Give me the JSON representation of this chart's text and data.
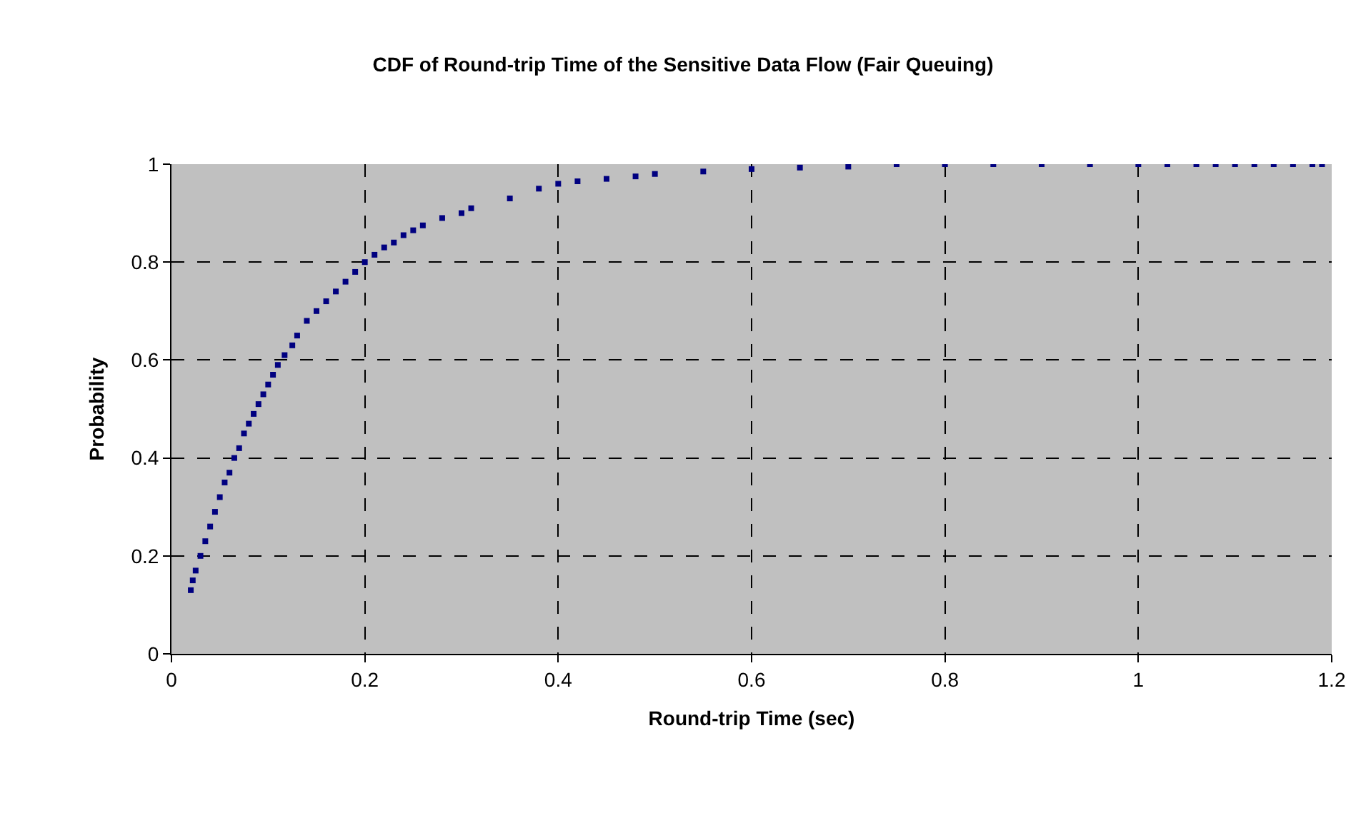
{
  "chart_data": {
    "type": "scatter",
    "title": "CDF of Round-trip Time of the Sensitive Data Flow (Fair Queuing)",
    "xlabel": "Round-trip Time (sec)",
    "ylabel": "Probability",
    "series": [
      {
        "color": "#000080",
        "x": [
          0.02,
          0.022,
          0.025,
          0.03,
          0.035,
          0.04,
          0.045,
          0.05,
          0.055,
          0.06,
          0.065,
          0.07,
          0.075,
          0.08,
          0.085,
          0.09,
          0.095,
          0.1,
          0.105,
          0.11,
          0.117,
          0.125,
          0.13,
          0.14,
          0.15,
          0.16,
          0.17,
          0.18,
          0.19,
          0.2,
          0.21,
          0.22,
          0.23,
          0.24,
          0.25,
          0.26,
          0.28,
          0.3,
          0.31,
          0.35,
          0.38,
          0.4,
          0.42,
          0.45,
          0.48,
          0.5,
          0.55,
          0.6,
          0.65,
          0.7,
          0.75,
          0.8,
          0.85,
          0.9,
          0.95,
          1.0,
          1.03,
          1.06,
          1.08,
          1.1,
          1.12,
          1.14,
          1.16,
          1.18,
          1.19
        ],
        "values": [
          0.13,
          0.15,
          0.17,
          0.2,
          0.23,
          0.26,
          0.29,
          0.32,
          0.35,
          0.37,
          0.4,
          0.42,
          0.45,
          0.47,
          0.49,
          0.51,
          0.53,
          0.55,
          0.57,
          0.59,
          0.61,
          0.63,
          0.65,
          0.68,
          0.7,
          0.72,
          0.74,
          0.76,
          0.78,
          0.8,
          0.815,
          0.83,
          0.84,
          0.855,
          0.865,
          0.875,
          0.89,
          0.9,
          0.91,
          0.93,
          0.95,
          0.96,
          0.965,
          0.97,
          0.975,
          0.98,
          0.985,
          0.99,
          0.993,
          0.995,
          1.0,
          1.0,
          1.0,
          1.0,
          1.0,
          1.0,
          1.0,
          1.0,
          1.0,
          1.0,
          1.0,
          1.0,
          1.0,
          1.0,
          1.0
        ]
      }
    ],
    "marker": "square",
    "xlim": [
      0,
      1.2
    ],
    "ylim": [
      0,
      1
    ],
    "xticks": [
      0,
      0.2,
      0.4,
      0.6,
      0.8,
      1,
      1.2
    ],
    "yticks": [
      0,
      0.2,
      0.4,
      0.6,
      0.8,
      1
    ],
    "grid": true,
    "legend": false
  }
}
